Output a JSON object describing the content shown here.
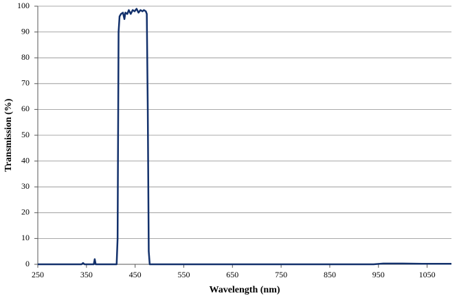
{
  "chart_data": {
    "type": "line",
    "xlabel": "Wavelength (nm)",
    "ylabel": "Transmission (%)",
    "x": [
      250,
      340,
      343,
      346,
      365,
      367,
      369,
      412,
      414,
      416,
      418,
      421,
      425,
      428,
      430,
      434,
      437,
      441,
      445,
      449,
      453,
      457,
      461,
      465,
      468,
      472,
      474,
      476,
      478,
      480,
      940,
      960,
      1000,
      1040,
      1100
    ],
    "values": [
      0,
      0,
      0.5,
      0,
      0,
      2,
      0,
      0,
      10,
      90,
      96,
      97,
      97.5,
      95,
      97.5,
      97,
      98.5,
      97,
      98.5,
      98,
      99,
      97.5,
      98.5,
      98,
      98.5,
      98,
      97,
      60,
      5,
      0,
      0,
      0.3,
      0.3,
      0.2,
      0.2
    ],
    "color": "#12306b",
    "xlim": [
      250,
      1100
    ],
    "xticks": [
      250,
      350,
      450,
      550,
      650,
      750,
      850,
      950,
      1050
    ],
    "ylim": [
      0,
      100
    ],
    "yticks": [
      0,
      10,
      20,
      30,
      40,
      50,
      60,
      70,
      80,
      90,
      100
    ],
    "grid": true
  }
}
